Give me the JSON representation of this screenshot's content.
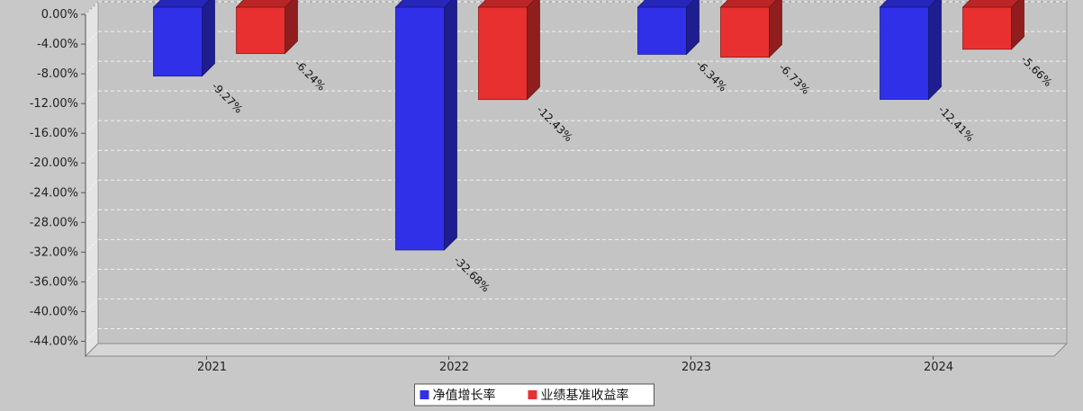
{
  "chart_data": {
    "type": "bar",
    "categories": [
      "2021",
      "2022",
      "2023",
      "2024"
    ],
    "series": [
      {
        "name": "净值增长率",
        "color": "#3030e8",
        "values": [
          -9.27,
          -32.68,
          -6.34,
          -12.41
        ]
      },
      {
        "name": "业绩基准收益率",
        "color": "#e83030",
        "values": [
          -6.24,
          -12.43,
          -6.73,
          -5.66
        ]
      }
    ],
    "data_labels": {
      "净值增长率": [
        "-9.27%",
        "-32.68%",
        "-6.34%",
        "-12.41%"
      ],
      "业绩基准收益率": [
        "-6.24%",
        "-12.43%",
        "-6.73%",
        "-5.66%"
      ]
    },
    "ylim": [
      -46,
      0
    ],
    "yticks": [
      0,
      -4,
      -8,
      -12,
      -16,
      -20,
      -24,
      -28,
      -32,
      -36,
      -40,
      -44
    ],
    "ytick_labels": [
      "0.00%",
      "-4.00%",
      "-8.00%",
      "-12.00%",
      "-16.00%",
      "-20.00%",
      "-24.00%",
      "-28.00%",
      "-32.00%",
      "-36.00%",
      "-40.00%",
      "-44.00%"
    ],
    "grid": true,
    "legend": "bottom-center",
    "title": "",
    "xlabel": "",
    "ylabel": ""
  }
}
